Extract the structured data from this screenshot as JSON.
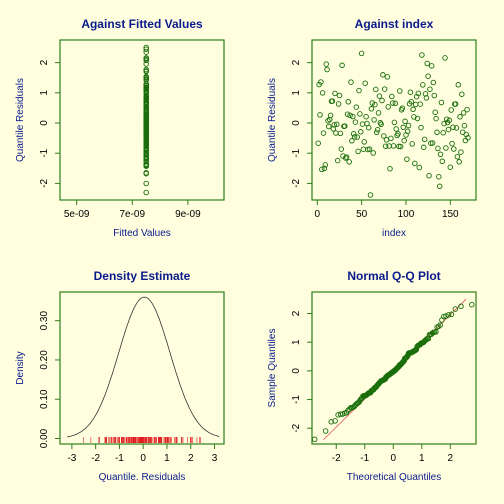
{
  "colors": {
    "background": "#ffffe0",
    "frame": "#2e7d1a",
    "points": "#1a6e0a",
    "title": "#0a1a8c",
    "rug": "#e02020",
    "refline": "#e05050"
  },
  "chart_data": [
    {
      "type": "scatter",
      "title": "Against Fitted Values",
      "xlabel": "Fitted Values",
      "ylabel": "Quantile Residuals",
      "x_ticks": [
        "5e-09",
        "7e-09",
        "9e-09"
      ],
      "x_tick_values": [
        5e-09,
        7e-09,
        9e-09
      ],
      "xlim": [
        4.4e-09,
        1.03e-08
      ],
      "y_ticks": [
        "-2",
        "-1",
        "0",
        "1",
        "2"
      ],
      "y_tick_values": [
        -2,
        -1,
        0,
        1,
        2
      ],
      "ylim": [
        -2.55,
        2.75
      ],
      "fitted_value": 7.5e-09,
      "n_points": 170,
      "y_range": [
        -2.3,
        2.5
      ]
    },
    {
      "type": "scatter",
      "title": "Against  index",
      "xlabel": "index",
      "ylabel": "Quantile Residuals",
      "x_ticks": [
        "0",
        "50",
        "100",
        "150"
      ],
      "x_tick_values": [
        0,
        50,
        100,
        150
      ],
      "xlim": [
        -6,
        179
      ],
      "y_ticks": [
        "-2",
        "-1",
        "0",
        "1",
        "2"
      ],
      "y_tick_values": [
        -2,
        -1,
        0,
        1,
        2
      ],
      "ylim": [
        -2.55,
        2.75
      ],
      "n_points": 170
    },
    {
      "type": "line",
      "title": "Density Estimate",
      "xlabel": "Quantile. Residuals",
      "ylabel": "Density",
      "x_ticks": [
        "-3",
        "-2",
        "-1",
        "0",
        "1",
        "2",
        "3"
      ],
      "x_tick_values": [
        -3,
        -2,
        -1,
        0,
        1,
        2,
        3
      ],
      "xlim": [
        -3.5,
        3.4
      ],
      "y_ticks": [
        "0.00",
        "0.10",
        "0.20",
        "0.30"
      ],
      "y_tick_values": [
        0,
        0.1,
        0.2,
        0.3
      ],
      "ylim": [
        -0.014,
        0.373
      ],
      "density_mean": 0.05,
      "density_sd": 1.08,
      "density_peak": 0.36,
      "curve_x_range": [
        -3.2,
        3.2
      ],
      "rug": true
    },
    {
      "type": "scatter",
      "title": "Normal Q-Q Plot",
      "xlabel": "Theoretical Quantiles",
      "ylabel": "Sample Quantiles",
      "x_ticks": [
        "-2",
        "-1",
        "0",
        "1",
        "2"
      ],
      "x_tick_values": [
        -2,
        -1,
        0,
        1,
        2
      ],
      "xlim": [
        -2.85,
        2.9
      ],
      "y_ticks": [
        "-2",
        "-1",
        "0",
        "1",
        "2"
      ],
      "y_tick_values": [
        -2,
        -1,
        0,
        1,
        2
      ],
      "ylim": [
        -2.55,
        2.75
      ],
      "reference_line": true,
      "n_points": 170
    }
  ]
}
